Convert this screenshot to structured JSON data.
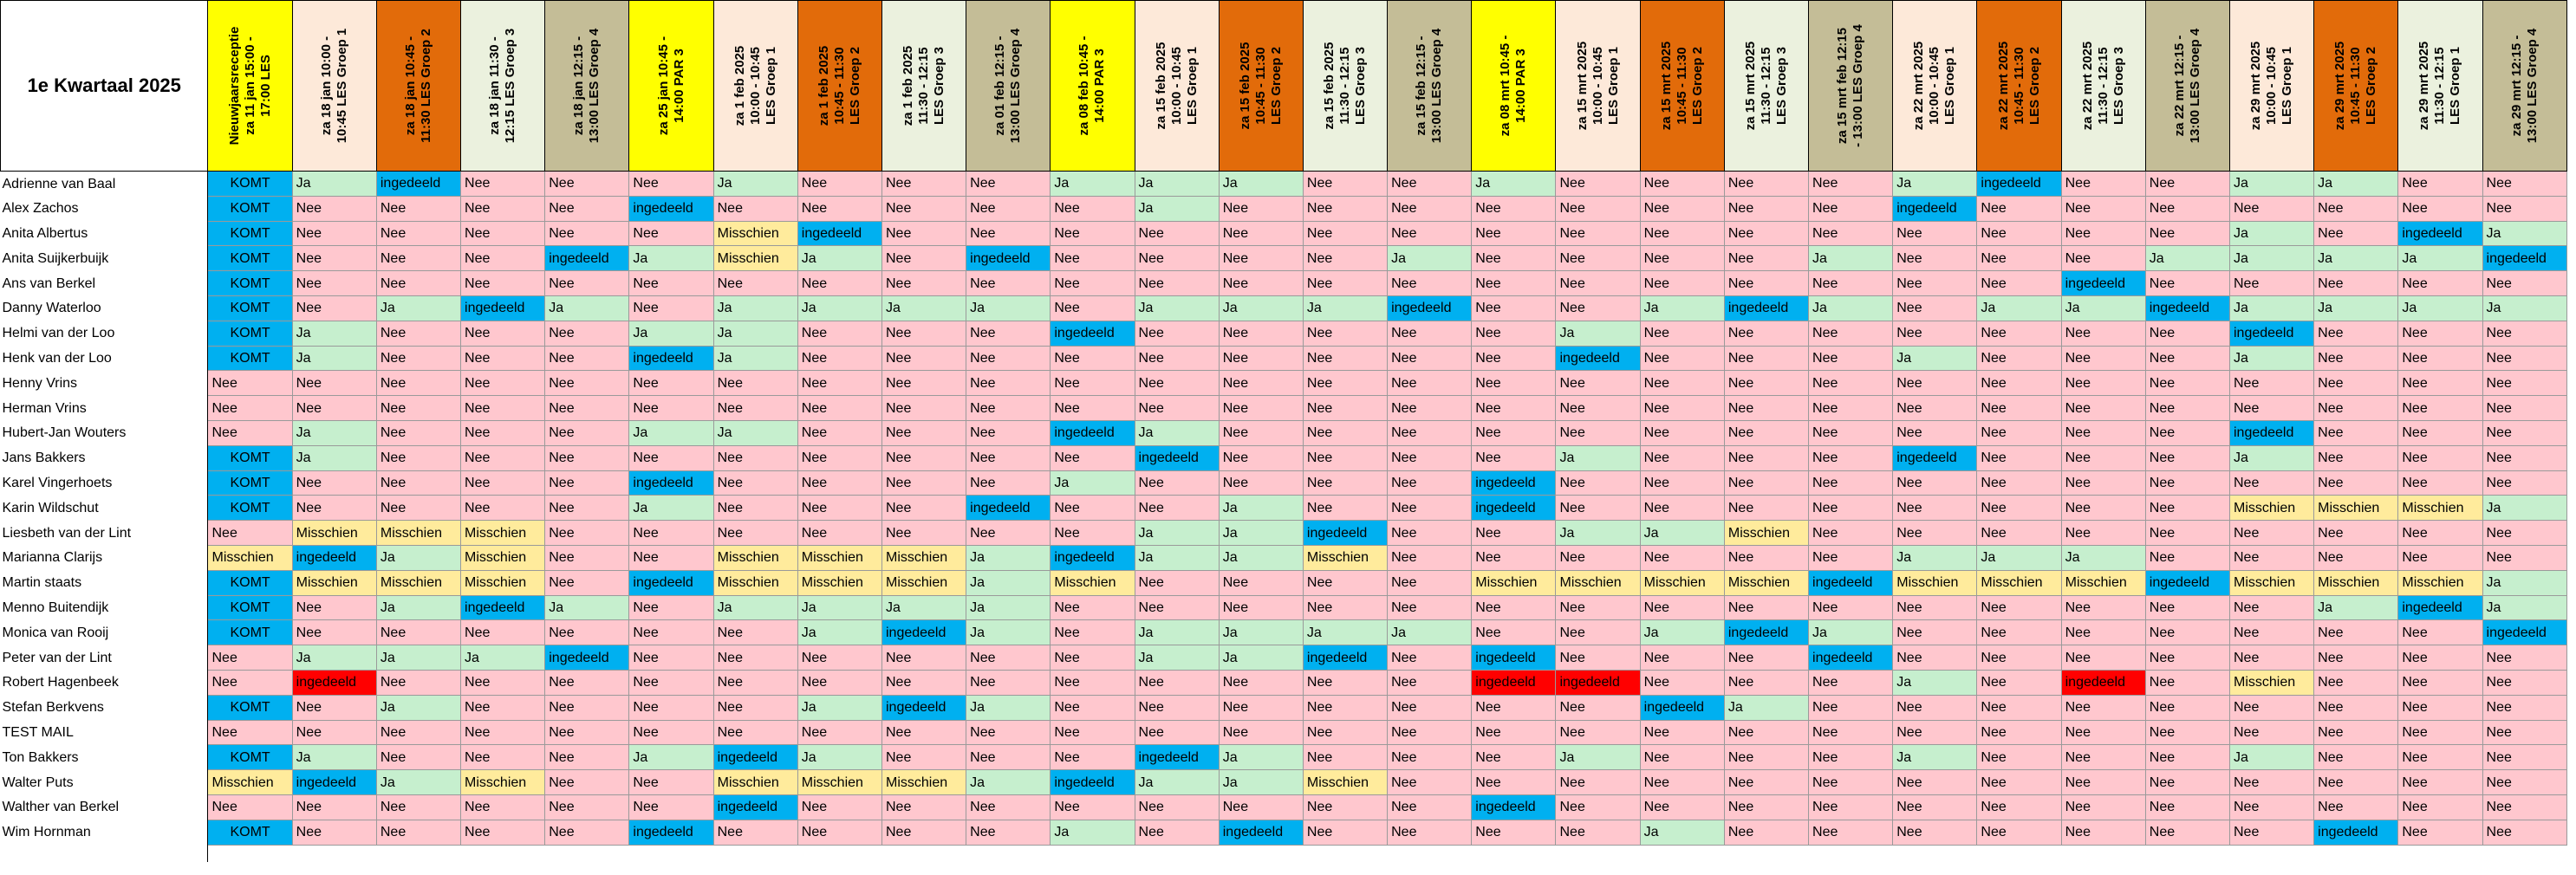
{
  "title": "1e Kwartaal 2025",
  "colors": {
    "header_yellow": "#ffff00",
    "header_peach": "#fde9d9",
    "header_orange": "#e26b0a",
    "header_lightgreen": "#ebf1de",
    "header_khaki": "#c4bd97",
    "ja": "#c6efce",
    "nee": "#ffc7ce",
    "ingedeeld": "#00b0f0",
    "misschien": "#ffeb9c",
    "red_ingedeeld": "#ff0000"
  },
  "columns": [
    {
      "lines": [
        "Nieuwjaarsreceptie",
        "za 11 jan 15:00 -",
        "17:00 LES"
      ],
      "color": "yellow"
    },
    {
      "lines": [
        "za 18 jan 10:00 -",
        "10:45 LES Groep 1"
      ],
      "color": "peach"
    },
    {
      "lines": [
        "za 18 jan 10:45 -",
        "11:30 LES Groep 2"
      ],
      "color": "orange"
    },
    {
      "lines": [
        "za 18 jan 11:30 -",
        "12:15 LES Groep 3"
      ],
      "color": "lightgreen"
    },
    {
      "lines": [
        "za 18 jan 12:15 -",
        "13:00 LES Groep 4"
      ],
      "color": "khaki"
    },
    {
      "lines": [
        "za 25 jan 10:45 -",
        "14:00 PAR 3"
      ],
      "color": "yellow"
    },
    {
      "lines": [
        "za 1 feb 2025",
        "10:00 - 10:45",
        "LES Groep 1"
      ],
      "color": "peach"
    },
    {
      "lines": [
        "za 1 feb 2025",
        "10:45 - 11:30",
        "LES Groep 2"
      ],
      "color": "orange"
    },
    {
      "lines": [
        "za 1 feb 2025",
        "11:30 - 12:15",
        "LES Groep 3"
      ],
      "color": "lightgreen"
    },
    {
      "lines": [
        "za 01 feb 12:15 -",
        "13:00 LES Groep 4"
      ],
      "color": "khaki"
    },
    {
      "lines": [
        "za 08 feb 10:45 -",
        "14:00 PAR 3"
      ],
      "color": "yellow"
    },
    {
      "lines": [
        "za 15 feb 2025",
        "10:00 - 10:45",
        "LES Groep 1"
      ],
      "color": "peach"
    },
    {
      "lines": [
        "za 15 feb 2025",
        "10:45 - 11:30",
        "LES Groep 2"
      ],
      "color": "orange"
    },
    {
      "lines": [
        "za 15 feb 2025",
        "11:30 - 12:15",
        "LES Groep 3"
      ],
      "color": "lightgreen"
    },
    {
      "lines": [
        "za 15 feb 12:15 -",
        "13:00 LES Groep 4"
      ],
      "color": "khaki"
    },
    {
      "lines": [
        "za 08 mrt 10:45 -",
        "14:00 PAR 3"
      ],
      "color": "yellow"
    },
    {
      "lines": [
        "za 15 mrt 2025",
        "10:00 - 10:45",
        "LES Groep 1"
      ],
      "color": "peach"
    },
    {
      "lines": [
        "za 15 mrt 2025",
        "10:45 - 11:30",
        "LES Groep 2"
      ],
      "color": "orange"
    },
    {
      "lines": [
        "za 15 mrt 2025",
        "11:30 - 12:15",
        "LES Groep 3"
      ],
      "color": "lightgreen"
    },
    {
      "lines": [
        "za 15 mrt feb 12:15",
        "- 13:00 LES Groep 4"
      ],
      "color": "khaki"
    },
    {
      "lines": [
        "za 22 mrt 2025",
        "10:00 - 10:45",
        "LES Groep 1"
      ],
      "color": "peach"
    },
    {
      "lines": [
        "za 22 mrt 2025",
        "10:45 - 11:30",
        "LES Groep 2"
      ],
      "color": "orange"
    },
    {
      "lines": [
        "za 22 mrt 2025",
        "11:30 - 12:15",
        "LES Groep 3"
      ],
      "color": "lightgreen"
    },
    {
      "lines": [
        "za 22 mrt 12:15 -",
        "13:00 LES Groep 4"
      ],
      "color": "khaki"
    },
    {
      "lines": [
        "za 29 mrt 2025",
        "10:00 - 10:45",
        "LES Groep 1"
      ],
      "color": "peach"
    },
    {
      "lines": [
        "za 29 mrt 2025",
        "10:45 - 11:30",
        "LES Groep 2"
      ],
      "color": "orange"
    },
    {
      "lines": [
        "za 29 mrt 2025",
        "11:30 - 12:15",
        "LES Groep 1"
      ],
      "color": "lightgreen"
    },
    {
      "lines": [
        "za 29 mrt 12:15 -",
        "13:00 LES Groep 4"
      ],
      "color": "khaki"
    }
  ],
  "rows": [
    {
      "name": "Adrienne van Baal",
      "cells": [
        "KOMT",
        "Ja",
        "ingedeeld",
        "Nee",
        "Nee",
        "Nee",
        "Ja",
        "Nee",
        "Nee",
        "Nee",
        "Ja",
        "Ja",
        "Ja",
        "Nee",
        "Nee",
        "Ja",
        "Nee",
        "Nee",
        "Nee",
        "Nee",
        "Ja",
        "ingedeeld",
        "Nee",
        "Nee",
        "Ja",
        "Ja",
        "Nee",
        "Nee"
      ]
    },
    {
      "name": "Alex Zachos",
      "cells": [
        "KOMT",
        "Nee",
        "Nee",
        "Nee",
        "Nee",
        "ingedeeld",
        "Nee",
        "Nee",
        "Nee",
        "Nee",
        "Nee",
        "Ja",
        "Nee",
        "Nee",
        "Nee",
        "Nee",
        "Nee",
        "Nee",
        "Nee",
        "Nee",
        "ingedeeld",
        "Nee",
        "Nee",
        "Nee",
        "Nee",
        "Nee",
        "Nee",
        "Nee"
      ]
    },
    {
      "name": "Anita Albertus",
      "cells": [
        "KOMT",
        "Nee",
        "Nee",
        "Nee",
        "Nee",
        "Nee",
        "Misschien",
        "ingedeeld",
        "Nee",
        "Nee",
        "Nee",
        "Nee",
        "Nee",
        "Nee",
        "Nee",
        "Nee",
        "Nee",
        "Nee",
        "Nee",
        "Nee",
        "Nee",
        "Nee",
        "Nee",
        "Nee",
        "Ja",
        "Nee",
        "ingedeeld",
        "Ja"
      ]
    },
    {
      "name": "Anita Suijkerbuijk",
      "cells": [
        "KOMT",
        "Nee",
        "Nee",
        "Nee",
        "ingedeeld",
        "Ja",
        "Misschien",
        "Ja",
        "Nee",
        "ingedeeld",
        "Nee",
        "Nee",
        "Nee",
        "Nee",
        "Ja",
        "Nee",
        "Nee",
        "Nee",
        "Nee",
        "Ja",
        "Nee",
        "Nee",
        "Nee",
        "Ja",
        "Ja",
        "Ja",
        "Ja",
        "ingedeeld"
      ]
    },
    {
      "name": "Ans van Berkel",
      "cells": [
        "KOMT",
        "Nee",
        "Nee",
        "Nee",
        "Nee",
        "Nee",
        "Nee",
        "Nee",
        "Nee",
        "Nee",
        "Nee",
        "Nee",
        "Nee",
        "Nee",
        "Nee",
        "Nee",
        "Nee",
        "Nee",
        "Nee",
        "Nee",
        "Nee",
        "Nee",
        "ingedeeld",
        "Nee",
        "Nee",
        "Nee",
        "Nee",
        "Nee"
      ]
    },
    {
      "name": "Danny Waterloo",
      "cells": [
        "KOMT",
        "Nee",
        "Ja",
        "ingedeeld",
        "Ja",
        "Nee",
        "Ja",
        "Ja",
        "Ja",
        "Ja",
        "Nee",
        "Ja",
        "Ja",
        "Ja",
        "ingedeeld",
        "Nee",
        "Nee",
        "Ja",
        "ingedeeld",
        "Ja",
        "Nee",
        "Ja",
        "Ja",
        "ingedeeld",
        "Ja",
        "Ja",
        "Ja",
        "Ja"
      ]
    },
    {
      "name": "Helmi van der Loo",
      "cells": [
        "KOMT",
        "Ja",
        "Nee",
        "Nee",
        "Nee",
        "Ja",
        "Ja",
        "Nee",
        "Nee",
        "Nee",
        "ingedeeld",
        "Nee",
        "Nee",
        "Nee",
        "Nee",
        "Nee",
        "Ja",
        "Nee",
        "Nee",
        "Nee",
        "Nee",
        "Nee",
        "Nee",
        "Nee",
        "ingedeeld",
        "Nee",
        "Nee",
        "Nee"
      ]
    },
    {
      "name": "Henk van der Loo",
      "cells": [
        "KOMT",
        "Ja",
        "Nee",
        "Nee",
        "Nee",
        "ingedeeld",
        "Ja",
        "Nee",
        "Nee",
        "Nee",
        "Nee",
        "Nee",
        "Nee",
        "Nee",
        "Nee",
        "Nee",
        "ingedeeld",
        "Nee",
        "Nee",
        "Nee",
        "Ja",
        "Nee",
        "Nee",
        "Nee",
        "Ja",
        "Nee",
        "Nee",
        "Nee"
      ]
    },
    {
      "name": "Henny Vrins",
      "cells": [
        "Nee",
        "Nee",
        "Nee",
        "Nee",
        "Nee",
        "Nee",
        "Nee",
        "Nee",
        "Nee",
        "Nee",
        "Nee",
        "Nee",
        "Nee",
        "Nee",
        "Nee",
        "Nee",
        "Nee",
        "Nee",
        "Nee",
        "Nee",
        "Nee",
        "Nee",
        "Nee",
        "Nee",
        "Nee",
        "Nee",
        "Nee",
        "Nee"
      ]
    },
    {
      "name": "Herman Vrins",
      "cells": [
        "Nee",
        "Nee",
        "Nee",
        "Nee",
        "Nee",
        "Nee",
        "Nee",
        "Nee",
        "Nee",
        "Nee",
        "Nee",
        "Nee",
        "Nee",
        "Nee",
        "Nee",
        "Nee",
        "Nee",
        "Nee",
        "Nee",
        "Nee",
        "Nee",
        "Nee",
        "Nee",
        "Nee",
        "Nee",
        "Nee",
        "Nee",
        "Nee"
      ]
    },
    {
      "name": "Hubert-Jan Wouters",
      "cells": [
        "Nee",
        "Ja",
        "Nee",
        "Nee",
        "Nee",
        "Ja",
        "Ja",
        "Nee",
        "Nee",
        "Nee",
        "ingedeeld",
        "Ja",
        "Nee",
        "Nee",
        "Nee",
        "Nee",
        "Nee",
        "Nee",
        "Nee",
        "Nee",
        "Nee",
        "Nee",
        "Nee",
        "Nee",
        "ingedeeld",
        "Nee",
        "Nee",
        "Nee"
      ]
    },
    {
      "name": "Jans Bakkers",
      "cells": [
        "KOMT",
        "Ja",
        "Nee",
        "Nee",
        "Nee",
        "Nee",
        "Nee",
        "Nee",
        "Nee",
        "Nee",
        "Nee",
        "ingedeeld",
        "Nee",
        "Nee",
        "Nee",
        "Nee",
        "Ja",
        "Nee",
        "Nee",
        "Nee",
        "ingedeeld",
        "Nee",
        "Nee",
        "Nee",
        "Ja",
        "Nee",
        "Nee",
        "Nee"
      ]
    },
    {
      "name": "Karel Vingerhoets",
      "cells": [
        "KOMT",
        "Nee",
        "Nee",
        "Nee",
        "Nee",
        "ingedeeld",
        "Nee",
        "Nee",
        "Nee",
        "Nee",
        "Ja",
        "Nee",
        "Nee",
        "Nee",
        "Nee",
        "ingedeeld",
        "Nee",
        "Nee",
        "Nee",
        "Nee",
        "Nee",
        "Nee",
        "Nee",
        "Nee",
        "Nee",
        "Nee",
        "Nee",
        "Nee"
      ]
    },
    {
      "name": "Karin Wildschut",
      "cells": [
        "KOMT",
        "Nee",
        "Nee",
        "Nee",
        "Nee",
        "Ja",
        "Nee",
        "Nee",
        "Nee",
        "ingedeeld",
        "Nee",
        "Nee",
        "Ja",
        "Nee",
        "Nee",
        "ingedeeld",
        "Nee",
        "Nee",
        "Nee",
        "Nee",
        "Nee",
        "Nee",
        "Nee",
        "Nee",
        "Misschien",
        "Misschien",
        "Misschien",
        "Ja"
      ]
    },
    {
      "name": "Liesbeth van der Lint",
      "cells": [
        "Nee",
        "Misschien",
        "Misschien",
        "Misschien",
        "Nee",
        "Nee",
        "Nee",
        "Nee",
        "Nee",
        "Nee",
        "Nee",
        "Ja",
        "Ja",
        "ingedeeld",
        "Nee",
        "Nee",
        "Ja",
        "Ja",
        "Misschien",
        "Nee",
        "Nee",
        "Nee",
        "Nee",
        "Nee",
        "Nee",
        "Nee",
        "Nee",
        "Nee"
      ]
    },
    {
      "name": "Marianna Clarijs",
      "cells": [
        "Misschien",
        "ingedeeld",
        "Ja",
        "Misschien",
        "Nee",
        "Nee",
        "Misschien",
        "Misschien",
        "Misschien",
        "Ja",
        "ingedeeld",
        "Ja",
        "Ja",
        "Misschien",
        "Nee",
        "Nee",
        "Nee",
        "Nee",
        "Nee",
        "Nee",
        "Ja",
        "Ja",
        "Ja",
        "Nee",
        "Nee",
        "Nee",
        "Nee",
        "Nee"
      ]
    },
    {
      "name": "Martin staats",
      "cells": [
        "KOMT",
        "Misschien",
        "Misschien",
        "Misschien",
        "Nee",
        "ingedeeld",
        "Misschien",
        "Misschien",
        "Misschien",
        "Ja",
        "Misschien",
        "Nee",
        "Nee",
        "Nee",
        "Nee",
        "Misschien",
        "Misschien",
        "Misschien",
        "Misschien",
        "ingedeeld",
        "Misschien",
        "Misschien",
        "Misschien",
        "ingedeeld",
        "Misschien",
        "Misschien",
        "Misschien",
        "Ja"
      ]
    },
    {
      "name": "Menno Buitendijk",
      "cells": [
        "KOMT",
        "Nee",
        "Ja",
        "ingedeeld",
        "Ja",
        "Nee",
        "Ja",
        "Ja",
        "Ja",
        "Ja",
        "Nee",
        "Nee",
        "Nee",
        "Nee",
        "Nee",
        "Nee",
        "Nee",
        "Nee",
        "Nee",
        "Nee",
        "Nee",
        "Nee",
        "Nee",
        "Nee",
        "Nee",
        "Ja",
        "ingedeeld",
        "Ja"
      ]
    },
    {
      "name": "Monica van Rooij",
      "cells": [
        "KOMT",
        "Nee",
        "Nee",
        "Nee",
        "Nee",
        "Nee",
        "Nee",
        "Ja",
        "ingedeeld",
        "Ja",
        "Nee",
        "Ja",
        "Ja",
        "Ja",
        "Ja",
        "Nee",
        "Nee",
        "Ja",
        "ingedeeld",
        "Ja",
        "Nee",
        "Nee",
        "Nee",
        "Nee",
        "Nee",
        "Nee",
        "Nee",
        "ingedeeld"
      ]
    },
    {
      "name": "Peter van der Lint",
      "cells": [
        "Nee",
        "Ja",
        "Ja",
        "Ja",
        "ingedeeld",
        "Nee",
        "Nee",
        "Nee",
        "Nee",
        "Nee",
        "Nee",
        "Ja",
        "Ja",
        "ingedeeld",
        "Nee",
        "ingedeeld",
        "Nee",
        "Nee",
        "Nee",
        "ingedeeld",
        "Nee",
        "Nee",
        "Nee",
        "Nee",
        "Nee",
        "Nee",
        "Nee",
        "Nee"
      ]
    },
    {
      "name": "Robert Hagenbeek",
      "cells": [
        "Nee",
        "ingedeeld",
        "Nee",
        "Nee",
        "Nee",
        "Nee",
        "Nee",
        "Nee",
        "Nee",
        "Nee",
        "Nee",
        "Nee",
        "Nee",
        "Nee",
        "Nee",
        "ingedeeld",
        "ingedeeld",
        "Nee",
        "Nee",
        "Nee",
        "Ja",
        "Nee",
        "ingedeeld",
        "Nee",
        "Misschien",
        "Nee",
        "Nee",
        "Nee"
      ]
    },
    {
      "name": "Stefan Berkvens",
      "cells": [
        "KOMT",
        "Nee",
        "Ja",
        "Nee",
        "Nee",
        "Nee",
        "Nee",
        "Ja",
        "ingedeeld",
        "Ja",
        "Nee",
        "Nee",
        "Nee",
        "Nee",
        "Nee",
        "Nee",
        "Nee",
        "ingedeeld",
        "Ja",
        "Nee",
        "Nee",
        "Nee",
        "Nee",
        "Nee",
        "Nee",
        "Nee",
        "Nee",
        "Nee"
      ]
    },
    {
      "name": "TEST MAIL",
      "cells": [
        "Nee",
        "Nee",
        "Nee",
        "Nee",
        "Nee",
        "Nee",
        "Nee",
        "Nee",
        "Nee",
        "Nee",
        "Nee",
        "Nee",
        "Nee",
        "Nee",
        "Nee",
        "Nee",
        "Nee",
        "Nee",
        "Nee",
        "Nee",
        "Nee",
        "Nee",
        "Nee",
        "Nee",
        "Nee",
        "Nee",
        "Nee",
        "Nee"
      ]
    },
    {
      "name": "Ton Bakkers",
      "cells": [
        "KOMT",
        "Ja",
        "Nee",
        "Nee",
        "Nee",
        "Ja",
        "ingedeeld",
        "Ja",
        "Nee",
        "Nee",
        "Nee",
        "ingedeeld",
        "Ja",
        "Nee",
        "Nee",
        "Nee",
        "Ja",
        "Nee",
        "Nee",
        "Nee",
        "Ja",
        "Nee",
        "Nee",
        "Nee",
        "Ja",
        "Nee",
        "Nee",
        "Nee"
      ]
    },
    {
      "name": "Walter Puts",
      "cells": [
        "Misschien",
        "ingedeeld",
        "Ja",
        "Misschien",
        "Nee",
        "Nee",
        "Misschien",
        "Misschien",
        "Misschien",
        "Ja",
        "ingedeeld",
        "Ja",
        "Ja",
        "Misschien",
        "Nee",
        "Nee",
        "Nee",
        "Nee",
        "Nee",
        "Nee",
        "Nee",
        "Nee",
        "Nee",
        "Nee",
        "Nee",
        "Nee",
        "Nee",
        "Nee"
      ]
    },
    {
      "name": "Walther van Berkel",
      "cells": [
        "Nee",
        "Nee",
        "Nee",
        "Nee",
        "Nee",
        "Nee",
        "ingedeeld",
        "Nee",
        "Nee",
        "Nee",
        "Nee",
        "Nee",
        "Nee",
        "Nee",
        "Nee",
        "ingedeeld",
        "Nee",
        "Nee",
        "Nee",
        "Nee",
        "Nee",
        "Nee",
        "Nee",
        "Nee",
        "Nee",
        "Nee",
        "Nee",
        "Nee"
      ]
    },
    {
      "name": "Wim Hornman",
      "cells": [
        "KOMT",
        "Nee",
        "Nee",
        "Nee",
        "Nee",
        "ingedeeld",
        "Nee",
        "Nee",
        "Nee",
        "Nee",
        "Ja",
        "Nee",
        "ingedeeld",
        "Nee",
        "Nee",
        "Nee",
        "Nee",
        "Ja",
        "Nee",
        "Nee",
        "Nee",
        "Nee",
        "Nee",
        "Nee",
        "Nee",
        "ingedeeld",
        "Nee",
        "Nee"
      ]
    }
  ],
  "red_cells": [
    [
      20,
      1
    ],
    [
      20,
      15
    ],
    [
      20,
      16
    ],
    [
      20,
      22
    ]
  ]
}
